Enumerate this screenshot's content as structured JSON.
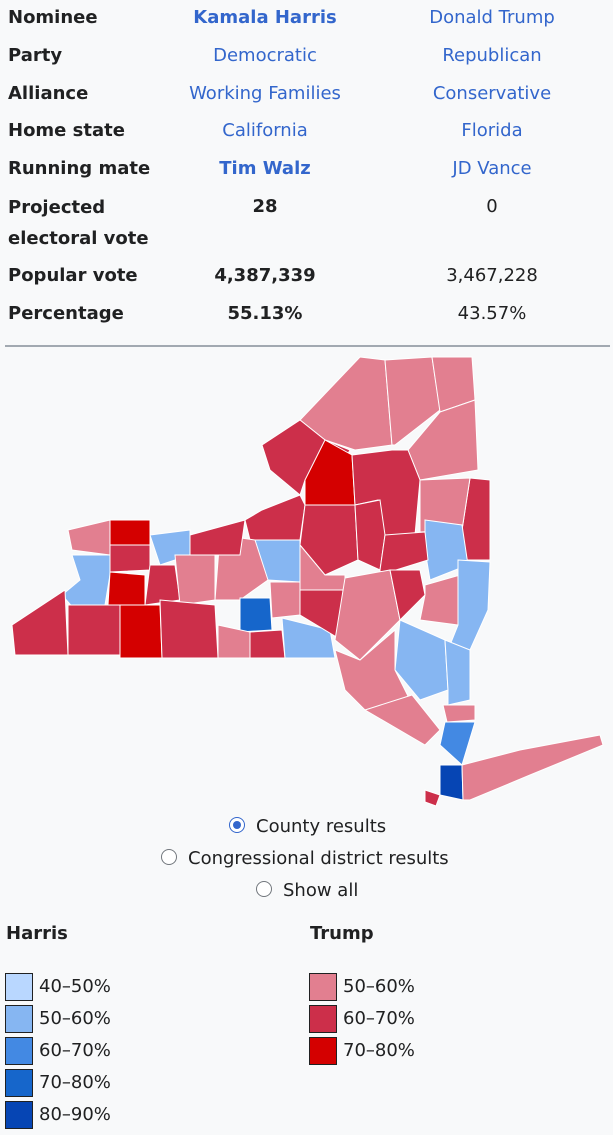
{
  "infobox": {
    "rows": [
      {
        "label": "Nominee",
        "harris": "Kamala Harris",
        "trump": "Donald Trump"
      },
      {
        "label": "Party",
        "harris": "Democratic",
        "trump": "Republican"
      },
      {
        "label": "Alliance",
        "harris": "Working Families",
        "trump": "Conservative"
      },
      {
        "label": "Home state",
        "harris": "California",
        "trump": "Florida"
      },
      {
        "label": "Running mate",
        "harris": "Tim Walz",
        "trump": "JD Vance"
      },
      {
        "label": "Projected electoral vote",
        "harris": "28",
        "trump": "0"
      },
      {
        "label": "Popular vote",
        "harris": "4,387,339",
        "trump": "3,467,228"
      },
      {
        "label": "Percentage",
        "harris": "55.13%",
        "trump": "43.57%"
      }
    ]
  },
  "map_options": [
    "County results",
    "Congressional district results",
    "Show all"
  ],
  "legend": {
    "harris": {
      "title": "Harris",
      "items": [
        {
          "label": "40–50%",
          "color": "#b9d7ff"
        },
        {
          "label": "50–60%",
          "color": "#86b6f2"
        },
        {
          "label": "60–70%",
          "color": "#4389e3"
        },
        {
          "label": "70–80%",
          "color": "#1666cb"
        },
        {
          "label": "80–90%",
          "color": "#0645b4"
        }
      ]
    },
    "trump": {
      "title": "Trump",
      "items": [
        {
          "label": "50–60%",
          "color": "#e27f90"
        },
        {
          "label": "60–70%",
          "color": "#cc2f4a"
        },
        {
          "label": "70–80%",
          "color": "#d40000"
        }
      ]
    }
  }
}
